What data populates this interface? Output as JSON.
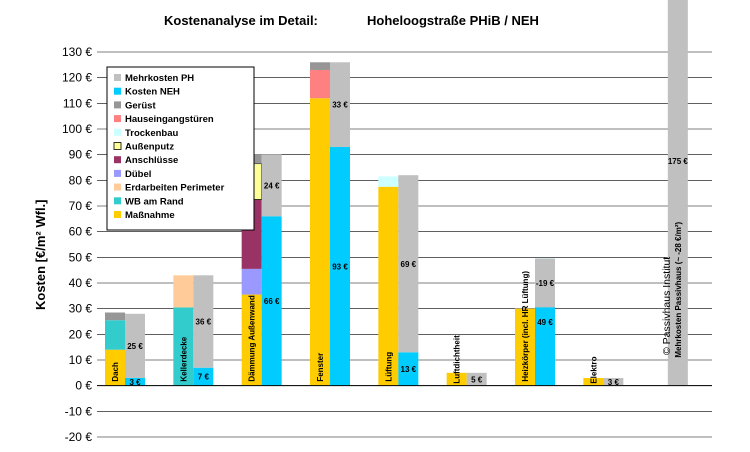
{
  "chart_data": {
    "type": "bar",
    "stacked": true,
    "title": "Kostenanalyse im Detail:",
    "subtitle": "Hoheloogstraße PHiB  / NEH",
    "ylabel": "Kosten [€/m²   Wfl.]",
    "ylim": [
      -20,
      130
    ],
    "ytick_step": 10,
    "ytick_labels": [
      "130 €",
      "120 €",
      "110 €",
      "100 €",
      "90 €",
      "80 €",
      "70 €",
      "60 €",
      "50 €",
      "40 €",
      "30 €",
      "20 €",
      "10 €",
      "0 €",
      "-10 €",
      "-20 €"
    ],
    "grid": true,
    "legend_position": "top-left",
    "copyright": "© Passivhaus Institut",
    "legend": [
      {
        "name": "Mehrkosten PH",
        "color": "#c0c0c0"
      },
      {
        "name": "Kosten NEH",
        "color": "#00ccff"
      },
      {
        "name": "Gerüst",
        "color": "#969696"
      },
      {
        "name": "Hauseingangstüren",
        "color": "#ff8080"
      },
      {
        "name": "Trockenbau",
        "color": "#ccffff"
      },
      {
        "name": "Außenputz",
        "color": "#ffff99"
      },
      {
        "name": "Anschlüsse",
        "color": "#993366"
      },
      {
        "name": "Dübel",
        "color": "#9999ff"
      },
      {
        "name": "Erdarbeiten Perimeter",
        "color": "#ffcc99"
      },
      {
        "name": "WB am Rand",
        "color": "#33cccc"
      },
      {
        "name": "Maßnahme",
        "color": "#ffcc00"
      }
    ],
    "categories": [
      {
        "label": "Dach",
        "ph_stack": [
          {
            "series": "Maßnahme",
            "value": 14
          },
          {
            "series": "WB am Rand",
            "value": 11.5
          },
          {
            "series": "Gerüst",
            "value": 3
          }
        ],
        "neh": 3,
        "neh_label": "3 €",
        "extra": 25,
        "extra_label": "25 €"
      },
      {
        "label": "Kellerdecke",
        "ph_stack": [
          {
            "series": "WB am Rand",
            "value": 30.5
          },
          {
            "series": "Erdarbeiten Perimeter",
            "value": 12.5
          }
        ],
        "neh": 7,
        "neh_label": "7 €",
        "extra": 36,
        "extra_label": "36 €"
      },
      {
        "label": "Dämmung Außenwand",
        "ph_stack": [
          {
            "series": "Maßnahme",
            "value": 35.5
          },
          {
            "series": "Dübel",
            "value": 10
          },
          {
            "series": "Anschlüsse",
            "value": 27
          },
          {
            "series": "Außenputz",
            "value": 14
          },
          {
            "series": "Gerüst",
            "value": 3.5
          }
        ],
        "neh": 66,
        "neh_label": "66 €",
        "extra": 24,
        "extra_label": "24 €"
      },
      {
        "label": "Fenster",
        "ph_stack": [
          {
            "series": "Maßnahme",
            "value": 112
          },
          {
            "series": "Hauseingangstüren",
            "value": 11
          },
          {
            "series": "Gerüst",
            "value": 3
          }
        ],
        "neh": 93,
        "neh_label": "93 €",
        "extra": 33,
        "extra_label": "33 €"
      },
      {
        "label": "Lüftung",
        "ph_stack": [
          {
            "series": "Maßnahme",
            "value": 77.5
          },
          {
            "series": "Trockenbau",
            "value": 4
          }
        ],
        "neh": 13,
        "neh_label": "13 €",
        "extra": 69,
        "extra_label": "69 €"
      },
      {
        "label": "Luftdichtheit",
        "ph_stack": [
          {
            "series": "Maßnahme",
            "value": 5
          }
        ],
        "neh": 0,
        "neh_label": "",
        "extra": 5,
        "extra_label": "5 €"
      },
      {
        "label": "Heizkörper (incl. HR Lüftung)",
        "ph_stack": [
          {
            "series": "Maßnahme",
            "value": 30
          }
        ],
        "neh": 49.5,
        "neh_label": "49 €",
        "extra": -19,
        "extra_label": "-19 €"
      },
      {
        "label": "Elektro",
        "ph_stack": [
          {
            "series": "Maßnahme",
            "value": 3
          }
        ],
        "neh": 0,
        "neh_label": "",
        "extra": 3,
        "extra_label": "3 €"
      },
      {
        "label": "Mehrkosten Passivhaus (~ -28 €/m²)",
        "ph_stack": [],
        "neh": 0,
        "neh_label": "",
        "extra": 175,
        "extra_label": "175 €"
      }
    ]
  }
}
